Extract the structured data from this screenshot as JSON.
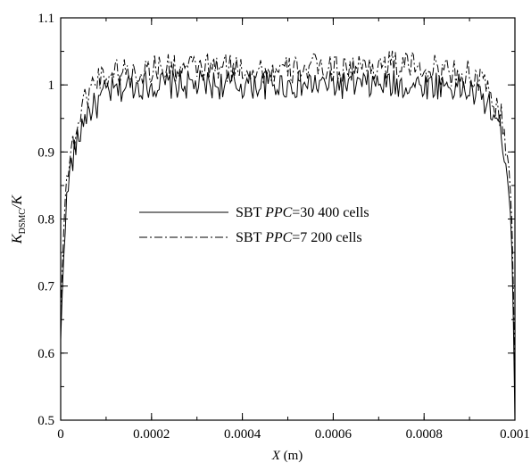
{
  "chart_data": {
    "type": "line",
    "xlabel": {
      "var": "X",
      "unit": " (m)"
    },
    "ylabel": {
      "base": "K",
      "sub": "DSMC",
      "tail": "/K"
    },
    "xlim": [
      0,
      0.001
    ],
    "ylim": [
      0.5,
      1.1
    ],
    "x_ticks": [
      0,
      0.0002,
      0.0004,
      0.0006,
      0.0008,
      0.001
    ],
    "x_tick_labels": [
      "0",
      "0.0002",
      "0.0004",
      "0.0006",
      "0.0008",
      "0.001"
    ],
    "x_minor_step": 0.0001,
    "y_ticks": [
      0.5,
      0.6,
      0.7,
      0.8,
      0.9,
      1.0,
      1.1
    ],
    "y_tick_labels": [
      "0.5",
      "0.6",
      "0.7",
      "0.8",
      "0.9",
      "1",
      "1.1"
    ],
    "y_minor_step": 0.05,
    "grid": false,
    "legend_placement": "center-left",
    "series": [
      {
        "name": "SBT PPC=30 400 cells",
        "legend_parts": [
          {
            "text": "SBT ",
            "italic": false
          },
          {
            "text": "PPC",
            "italic": true
          },
          {
            "text": "=30 400 cells",
            "italic": false
          }
        ],
        "dash": "solid",
        "x": [
          0,
          5e-06,
          1e-05,
          2e-05,
          3e-05,
          4e-05,
          5e-05,
          6e-05,
          8e-05,
          0.0001,
          0.00012,
          0.00015,
          0.00018,
          0.0002,
          0.00025,
          0.0003,
          0.00035,
          0.0004,
          0.00045,
          0.0005,
          0.00055,
          0.0006,
          0.00065,
          0.0007,
          0.00075,
          0.0008,
          0.00085,
          0.0009,
          0.00093,
          0.00095,
          0.00097,
          0.00098,
          0.00099,
          0.000995,
          0.001
        ],
        "y": [
          0.62,
          0.72,
          0.8,
          0.87,
          0.9,
          0.92,
          0.95,
          0.96,
          0.97,
          0.99,
          0.99,
          1.0,
          1.0,
          1.0,
          1.0,
          1.0,
          1.0,
          1.0,
          1.0,
          1.0,
          1.0,
          1.0,
          1.0,
          1.0,
          1.0,
          1.0,
          1.0,
          0.99,
          0.98,
          0.96,
          0.93,
          0.89,
          0.82,
          0.72,
          0.5
        ]
      },
      {
        "name": "SBT PPC=7 200 cells",
        "legend_parts": [
          {
            "text": "SBT ",
            "italic": false
          },
          {
            "text": "PPC",
            "italic": true
          },
          {
            "text": "=7 200 cells",
            "italic": false
          }
        ],
        "dash": "dashdot",
        "x": [
          0,
          5e-06,
          1e-05,
          2e-05,
          3e-05,
          4e-05,
          5e-05,
          6e-05,
          8e-05,
          0.0001,
          0.00012,
          0.00015,
          0.00018,
          0.0002,
          0.00025,
          0.0003,
          0.00035,
          0.0004,
          0.00045,
          0.0005,
          0.00055,
          0.0006,
          0.00065,
          0.0007,
          0.00075,
          0.0008,
          0.00085,
          0.0009,
          0.00093,
          0.00095,
          0.00097,
          0.00098,
          0.00099,
          0.000995,
          0.001
        ],
        "y": [
          0.66,
          0.76,
          0.84,
          0.89,
          0.92,
          0.95,
          0.97,
          0.99,
          1.01,
          1.015,
          1.02,
          1.02,
          1.02,
          1.025,
          1.025,
          1.025,
          1.025,
          1.025,
          1.02,
          1.02,
          1.025,
          1.025,
          1.025,
          1.03,
          1.03,
          1.025,
          1.02,
          1.015,
          1.0,
          0.98,
          0.95,
          0.91,
          0.85,
          0.76,
          0.55
        ]
      }
    ],
    "noise_amplitude": 0.022
  }
}
